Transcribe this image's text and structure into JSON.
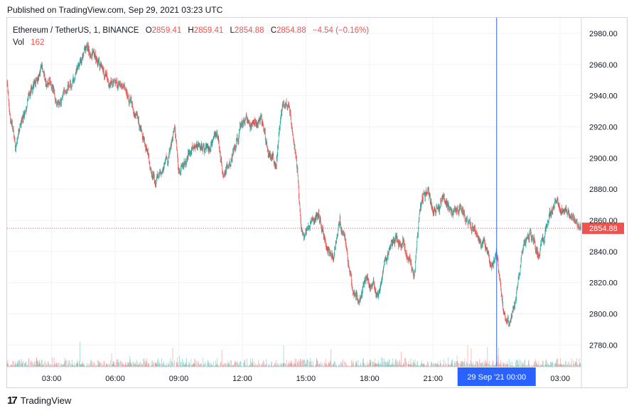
{
  "published": "Published on TradingView.com, Sep 29, 2021 03:23 UTC",
  "legend": {
    "symbol": "Ethereum / TetherUS, 1, BINANCE",
    "o_label": "O",
    "o_value": "2859.41",
    "h_label": "H",
    "h_value": "2859.41",
    "l_label": "L",
    "l_value": "2854.88",
    "c_label": "C",
    "c_value": "2854.88",
    "change": "−4.54 (−0.16%)",
    "vol_label": "Vol",
    "vol_value": "162"
  },
  "footer": {
    "brand": "TradingView",
    "logo_icon": "tradingview-logo-icon"
  },
  "colors": {
    "up": "#26a69a",
    "down": "#ef5350",
    "crosshair": "#2962ff",
    "price_line": "#ef5350",
    "grid": "#f0f3fa",
    "axis_text": "#131722"
  },
  "chart_data": {
    "type": "candlestick",
    "title": "Ethereum / TetherUS, 1, BINANCE",
    "ylim": [
      2766,
      2990
    ],
    "y_ticks": [
      "2980.00",
      "2960.00",
      "2940.00",
      "2920.00",
      "2900.00",
      "2880.00",
      "2860.00",
      "2840.00",
      "2820.00",
      "2800.00",
      "2780.00"
    ],
    "y_tick_values": [
      2980,
      2960,
      2940,
      2920,
      2900,
      2880,
      2860,
      2840,
      2820,
      2800,
      2780
    ],
    "x_ticks": [
      "03:00",
      "06:00",
      "09:00",
      "12:00",
      "15:00",
      "18:00",
      "21:00",
      "03:00"
    ],
    "x_tick_hours": [
      3,
      6,
      9,
      12,
      15,
      18,
      21,
      27
    ],
    "x_range_hours": [
      0.9,
      28.0
    ],
    "crosshair_label": "29 Sep '21   00:00",
    "crosshair_hours": 24,
    "last_price": 2854.88,
    "last_price_label": "2854.88",
    "grid": true,
    "price_path": [
      {
        "t": 0.9,
        "p": 2948
      },
      {
        "t": 1.0,
        "p": 2930
      },
      {
        "t": 1.3,
        "p": 2908
      },
      {
        "t": 1.6,
        "p": 2925
      },
      {
        "t": 2.0,
        "p": 2945
      },
      {
        "t": 2.5,
        "p": 2955
      },
      {
        "t": 2.9,
        "p": 2948
      },
      {
        "t": 3.3,
        "p": 2933
      },
      {
        "t": 3.8,
        "p": 2945
      },
      {
        "t": 4.2,
        "p": 2955
      },
      {
        "t": 4.6,
        "p": 2970
      },
      {
        "t": 5.1,
        "p": 2965
      },
      {
        "t": 5.6,
        "p": 2950
      },
      {
        "t": 6.1,
        "p": 2948
      },
      {
        "t": 6.8,
        "p": 2935
      },
      {
        "t": 7.3,
        "p": 2912
      },
      {
        "t": 7.6,
        "p": 2898
      },
      {
        "t": 7.9,
        "p": 2885
      },
      {
        "t": 8.2,
        "p": 2893
      },
      {
        "t": 8.5,
        "p": 2900
      },
      {
        "t": 8.8,
        "p": 2920
      },
      {
        "t": 9.0,
        "p": 2890
      },
      {
        "t": 9.3,
        "p": 2900
      },
      {
        "t": 9.8,
        "p": 2910
      },
      {
        "t": 10.3,
        "p": 2905
      },
      {
        "t": 10.8,
        "p": 2915
      },
      {
        "t": 11.1,
        "p": 2890
      },
      {
        "t": 11.5,
        "p": 2900
      },
      {
        "t": 12.0,
        "p": 2925
      },
      {
        "t": 12.5,
        "p": 2920
      },
      {
        "t": 12.9,
        "p": 2925
      },
      {
        "t": 13.2,
        "p": 2905
      },
      {
        "t": 13.6,
        "p": 2895
      },
      {
        "t": 13.9,
        "p": 2935
      },
      {
        "t": 14.2,
        "p": 2935
      },
      {
        "t": 14.4,
        "p": 2915
      },
      {
        "t": 14.6,
        "p": 2895
      },
      {
        "t": 14.7,
        "p": 2870
      },
      {
        "t": 14.8,
        "p": 2850
      },
      {
        "t": 15.2,
        "p": 2858
      },
      {
        "t": 15.6,
        "p": 2862
      },
      {
        "t": 16.0,
        "p": 2842
      },
      {
        "t": 16.3,
        "p": 2835
      },
      {
        "t": 16.6,
        "p": 2862
      },
      {
        "t": 16.9,
        "p": 2842
      },
      {
        "t": 17.2,
        "p": 2818
      },
      {
        "t": 17.5,
        "p": 2808
      },
      {
        "t": 17.8,
        "p": 2825
      },
      {
        "t": 18.2,
        "p": 2818
      },
      {
        "t": 18.4,
        "p": 2810
      },
      {
        "t": 18.7,
        "p": 2830
      },
      {
        "t": 19.1,
        "p": 2848
      },
      {
        "t": 19.6,
        "p": 2845
      },
      {
        "t": 19.9,
        "p": 2835
      },
      {
        "t": 20.1,
        "p": 2822
      },
      {
        "t": 20.4,
        "p": 2870
      },
      {
        "t": 20.7,
        "p": 2880
      },
      {
        "t": 21.0,
        "p": 2868
      },
      {
        "t": 21.5,
        "p": 2872
      },
      {
        "t": 21.9,
        "p": 2865
      },
      {
        "t": 22.3,
        "p": 2870
      },
      {
        "t": 22.6,
        "p": 2860
      },
      {
        "t": 23.0,
        "p": 2852
      },
      {
        "t": 23.4,
        "p": 2845
      },
      {
        "t": 23.7,
        "p": 2832
      },
      {
        "t": 24.0,
        "p": 2838
      },
      {
        "t": 24.3,
        "p": 2803
      },
      {
        "t": 24.6,
        "p": 2792
      },
      {
        "t": 24.9,
        "p": 2812
      },
      {
        "t": 25.2,
        "p": 2840
      },
      {
        "t": 25.6,
        "p": 2850
      },
      {
        "t": 26.0,
        "p": 2838
      },
      {
        "t": 26.4,
        "p": 2858
      },
      {
        "t": 26.8,
        "p": 2872
      },
      {
        "t": 27.2,
        "p": 2868
      },
      {
        "t": 27.6,
        "p": 2860
      },
      {
        "t": 28.0,
        "p": 2855
      }
    ]
  }
}
